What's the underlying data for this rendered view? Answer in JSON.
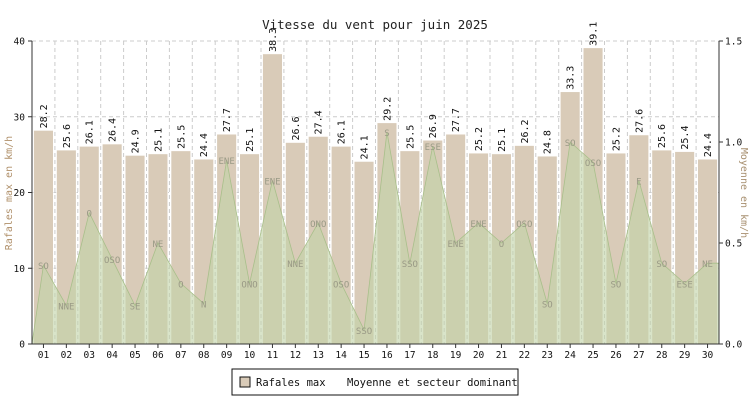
{
  "chart_data": {
    "type": "bar",
    "title": "Vitesse du vent pour juin 2025",
    "ylabel": "Rafales max en km/h",
    "ylabel_right": "Moyenne en km/h",
    "ylim": [
      0,
      40
    ],
    "ylim_right": [
      0,
      1.5
    ],
    "yticks": [
      "0",
      "10",
      "20",
      "30",
      "40"
    ],
    "yticks_right": [
      "0.0",
      "0.5",
      "1.0",
      "1.5"
    ],
    "categories": [
      "01",
      "02",
      "03",
      "04",
      "05",
      "06",
      "07",
      "08",
      "09",
      "10",
      "11",
      "12",
      "13",
      "14",
      "15",
      "16",
      "17",
      "18",
      "19",
      "20",
      "21",
      "22",
      "23",
      "24",
      "25",
      "26",
      "27",
      "28",
      "29",
      "30"
    ],
    "series": [
      {
        "name": "Rafales max",
        "type": "bar",
        "axis": "left",
        "color": "#d9cbb8",
        "values": [
          28.2,
          25.6,
          26.1,
          26.4,
          24.9,
          25.1,
          25.5,
          24.4,
          27.7,
          25.1,
          38.3,
          26.6,
          27.4,
          26.1,
          24.1,
          29.2,
          25.5,
          26.9,
          27.7,
          25.2,
          25.1,
          26.2,
          24.8,
          33.3,
          39.1,
          25.2,
          27.6,
          25.6,
          25.4,
          24.4
        ],
        "labels": [
          "28.2",
          "25.6",
          "26.1",
          "26.4",
          "24.9",
          "25.1",
          "25.5",
          "24.4",
          "27.7",
          "25.1",
          "38.3",
          "26.6",
          "27.4",
          "26.1",
          "24.1",
          "29.2",
          "25.5",
          "26.9",
          "27.7",
          "25.2",
          "25.1",
          "26.2",
          "24.8",
          "33.3",
          "39.1",
          "25.2",
          "27.6",
          "25.6",
          "25.4",
          "24.4"
        ]
      },
      {
        "name": "Moyenne et secteur dominant",
        "type": "area",
        "axis": "right",
        "color": "#c2d3a8",
        "values": [
          0.39,
          0.19,
          0.65,
          0.42,
          0.19,
          0.5,
          0.3,
          0.2,
          0.91,
          0.3,
          0.81,
          0.4,
          0.6,
          0.3,
          0.07,
          1.05,
          0.4,
          0.98,
          0.5,
          0.6,
          0.5,
          0.6,
          0.2,
          1.0,
          0.9,
          0.3,
          0.81,
          0.4,
          0.3,
          0.4
        ],
        "sectors": [
          "SO",
          "NNE",
          "O",
          "OSO",
          "SE",
          "NE",
          "O",
          "N",
          "ENE",
          "ONO",
          "ENE",
          "NNE",
          "ONO",
          "OSO",
          "SSO",
          "S",
          "SSO",
          "ESE",
          "ENE",
          "ENE",
          "O",
          "OSO",
          "SO",
          "SO",
          "OSO",
          "SO",
          "E",
          "SO",
          "ESE",
          "NE"
        ]
      }
    ],
    "grid": true,
    "legend_position": "bottom"
  },
  "legend": {
    "items": [
      {
        "label": "Rafales max",
        "color": "#d9cbb8"
      },
      {
        "label": "Moyenne et secteur dominant",
        "color": "#c2d3a8"
      }
    ]
  }
}
